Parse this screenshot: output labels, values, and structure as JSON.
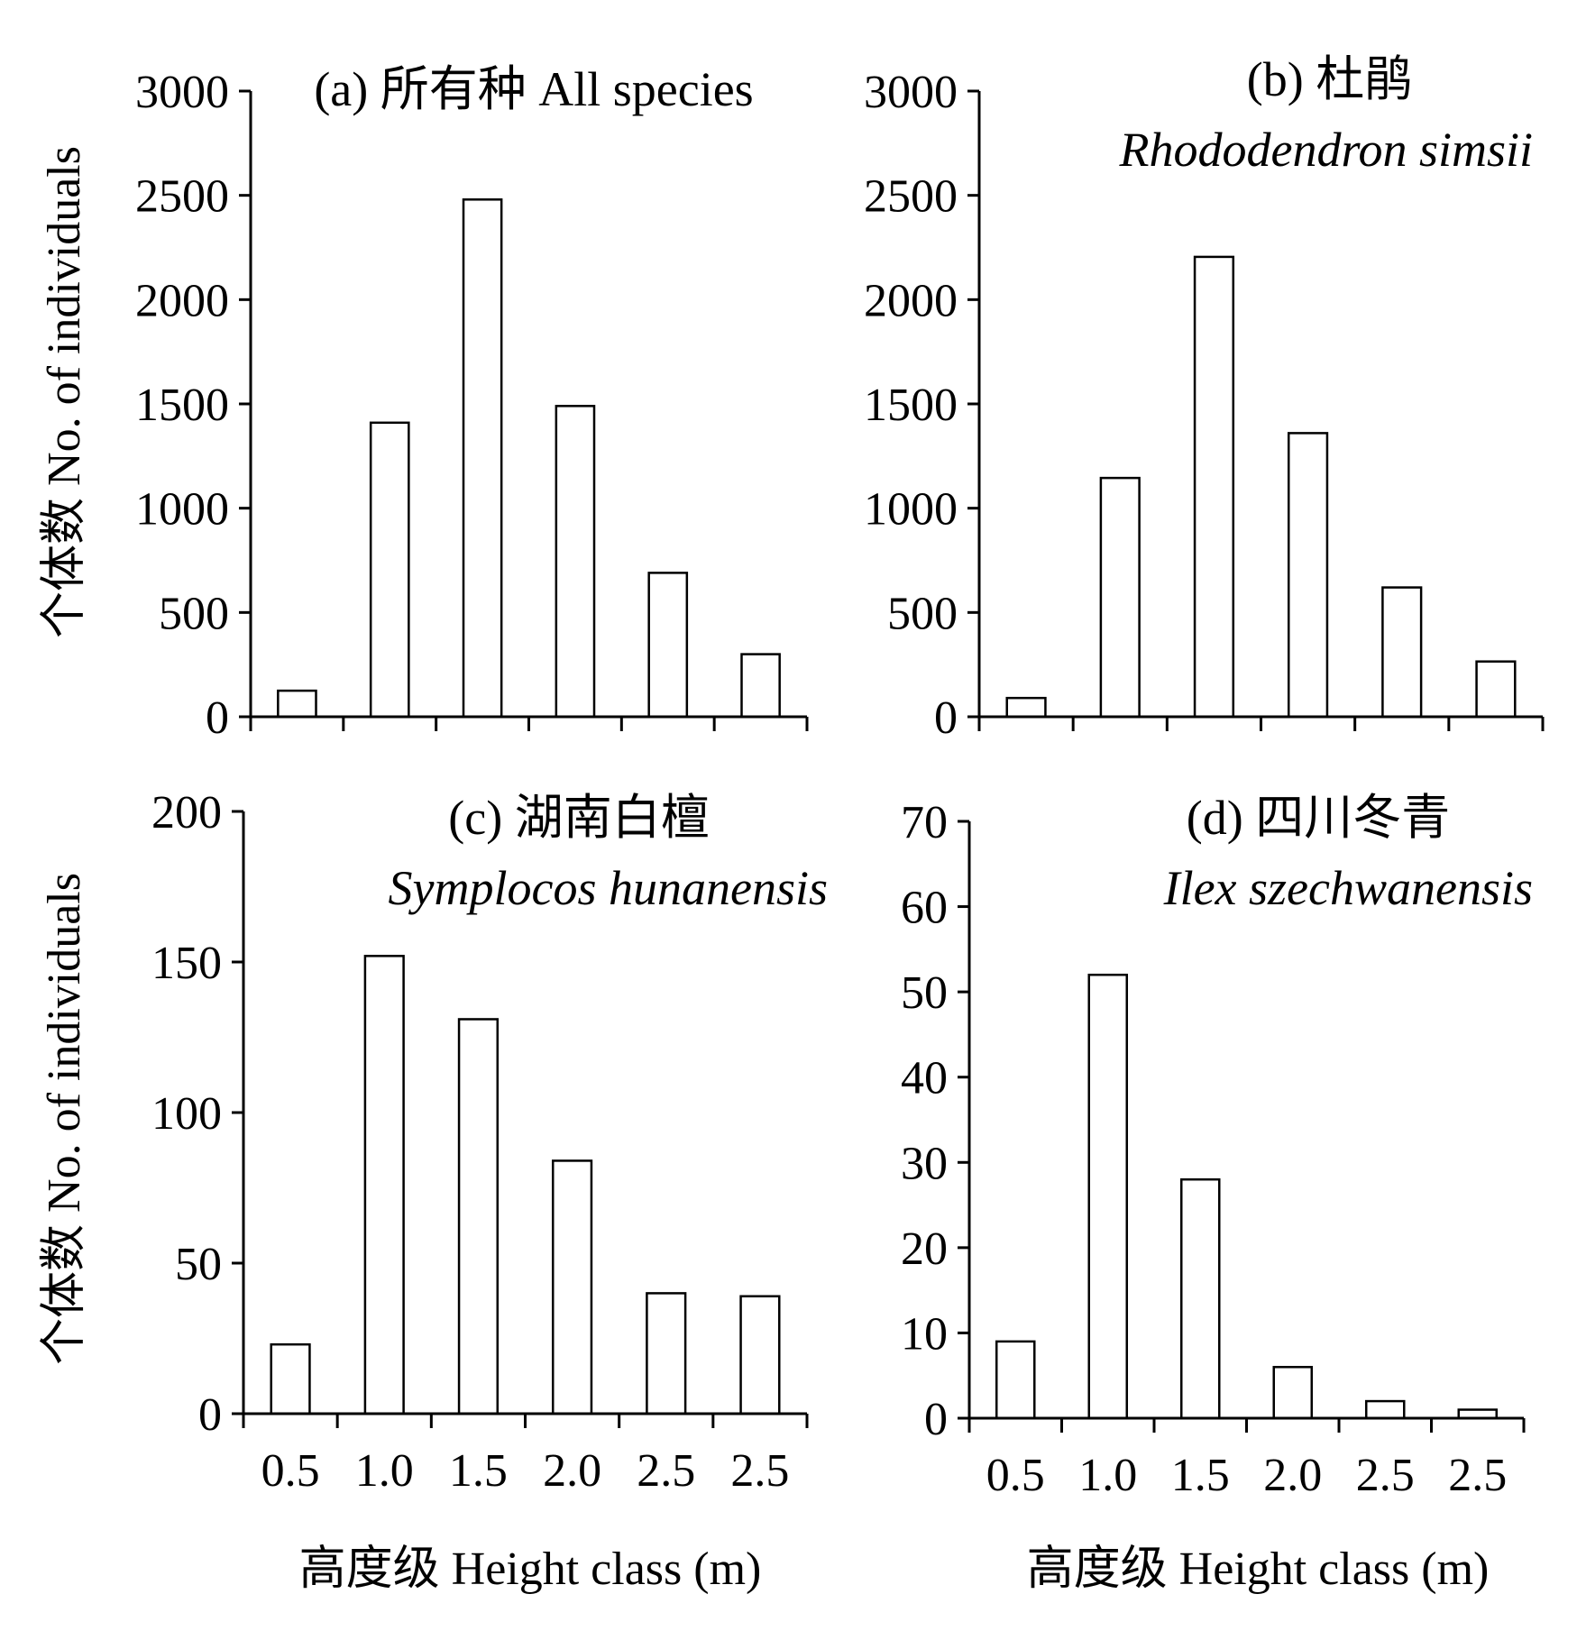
{
  "figure": {
    "ylabel": "个体数 No. of individuals",
    "xlabel": "高度级 Height class (m)"
  },
  "chart_data": [
    {
      "type": "bar",
      "title": "(a) 所有种 All species",
      "subtitle": "",
      "categories": [
        "0.5",
        "1.0",
        "1.5",
        "2.0",
        "2.5",
        "2.5"
      ],
      "values": [
        125,
        1410,
        2480,
        1490,
        690,
        300
      ],
      "ylim": [
        0,
        3000
      ],
      "yticks": [
        0,
        500,
        1000,
        1500,
        2000,
        2500,
        3000
      ],
      "xlabel": "",
      "ylabel": "个体数 No. of individuals",
      "grid": false
    },
    {
      "type": "bar",
      "title": "(b) 杜鹃",
      "subtitle": "Rhododendron simsii",
      "categories": [
        "0.5",
        "1.0",
        "1.5",
        "2.0",
        "2.5",
        "2.5"
      ],
      "values": [
        90,
        1145,
        2205,
        1360,
        620,
        265
      ],
      "ylim": [
        0,
        3000
      ],
      "yticks": [
        0,
        500,
        1000,
        1500,
        2000,
        2500,
        3000
      ],
      "xlabel": "",
      "ylabel": "",
      "grid": false
    },
    {
      "type": "bar",
      "title": "(c) 湖南白檀",
      "subtitle": "Symplocos hunanensis",
      "categories": [
        "0.5",
        "1.0",
        "1.5",
        "2.0",
        "2.5",
        "2.5"
      ],
      "values": [
        23,
        152,
        131,
        84,
        40,
        39
      ],
      "ylim": [
        0,
        200
      ],
      "yticks": [
        0,
        50,
        100,
        150,
        200
      ],
      "xlabel": "高度级 Height class (m)",
      "ylabel": "个体数 No. of individuals",
      "grid": false
    },
    {
      "type": "bar",
      "title": "(d) 四川冬青",
      "subtitle": "Ilex szechwanensis",
      "categories": [
        "0.5",
        "1.0",
        "1.5",
        "2.0",
        "2.5",
        "2.5"
      ],
      "values": [
        9,
        52,
        28,
        6,
        2,
        1
      ],
      "ylim": [
        0,
        70
      ],
      "yticks": [
        0,
        10,
        20,
        30,
        40,
        50,
        60,
        70
      ],
      "xlabel": "高度级 Height class (m)",
      "ylabel": "",
      "grid": false
    }
  ]
}
